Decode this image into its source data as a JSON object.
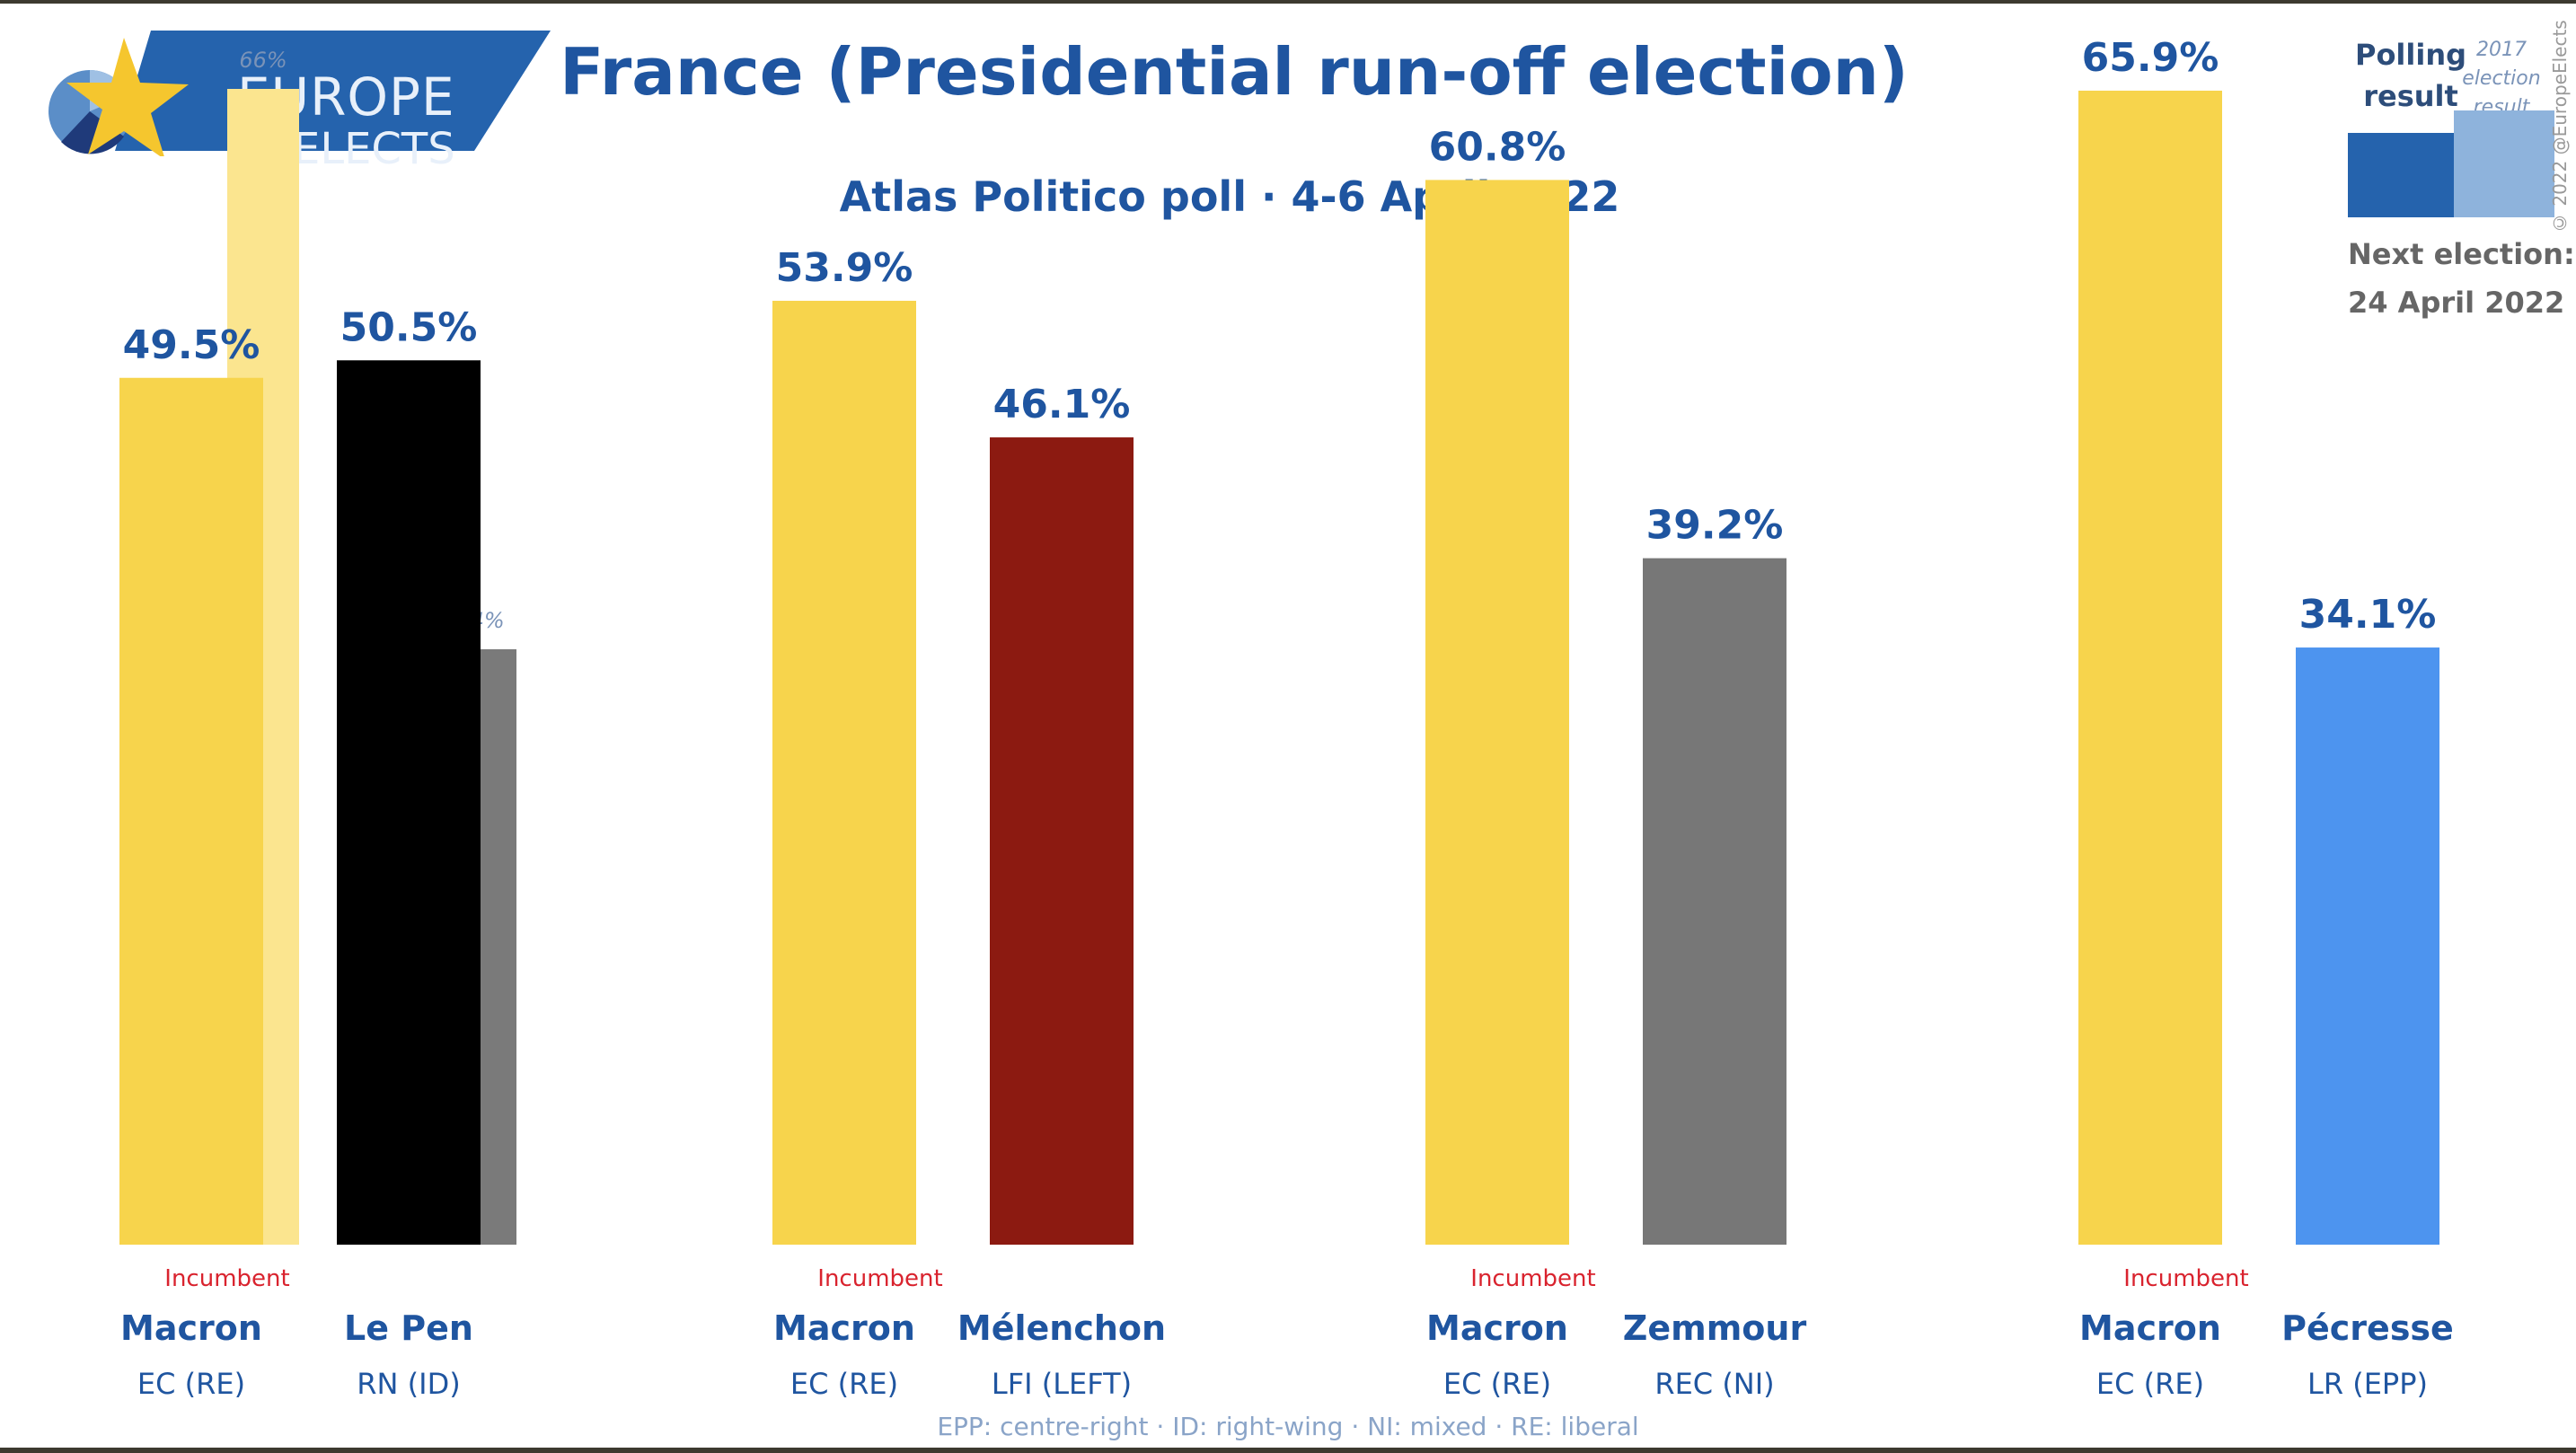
{
  "branding": {
    "line1": "EUROPE",
    "line2": "ELECTS",
    "copyright": "© 2022 @EuropeElects"
  },
  "header": {
    "title": "France (Presidential run-off election)",
    "subtitle": "Atlas Politico poll · 4-6 April 2022"
  },
  "legend": {
    "polling_label": "Polling result",
    "prev_label": "2017 election result",
    "polling_color": "#2563ad",
    "prev_color": "#8eb3dc",
    "next_election_label": "Next election:",
    "next_election_date": "24 April 2022"
  },
  "footnote": "EPP: centre-right · ID: right-wing · NI: mixed · RE: liberal",
  "chart_data": {
    "type": "bar",
    "title": "France (Presidential run-off election)",
    "subtitle": "Atlas Politico poll · 4-6 April 2022",
    "ylim": [
      0,
      70
    ],
    "unit": "%",
    "incumbent_label": "Incumbent",
    "matchups": [
      {
        "candidates": [
          {
            "name": "Macron",
            "party": "EC (RE)",
            "value": 49.5,
            "label": "49.5%",
            "prev": 66,
            "prev_label": "66%",
            "color": "#f7d44c",
            "prev_color": "#fbe58f",
            "incumbent": true
          },
          {
            "name": "Le Pen",
            "party": "RN (ID)",
            "value": 50.5,
            "label": "50.5%",
            "prev": 34,
            "prev_label": "34%",
            "color": "#000000",
            "prev_color": "#7a7a7a",
            "incumbent": false
          }
        ]
      },
      {
        "candidates": [
          {
            "name": "Macron",
            "party": "EC (RE)",
            "value": 53.9,
            "label": "53.9%",
            "color": "#f7d44c",
            "incumbent": true
          },
          {
            "name": "Mélenchon",
            "party": "LFI (LEFT)",
            "value": 46.1,
            "label": "46.1%",
            "color": "#8c1a11",
            "incumbent": false
          }
        ]
      },
      {
        "candidates": [
          {
            "name": "Macron",
            "party": "EC (RE)",
            "value": 60.8,
            "label": "60.8%",
            "color": "#f7d44c",
            "incumbent": true
          },
          {
            "name": "Zemmour",
            "party": "REC (NI)",
            "value": 39.2,
            "label": "39.2%",
            "color": "#777777",
            "incumbent": false
          }
        ]
      },
      {
        "candidates": [
          {
            "name": "Macron",
            "party": "EC (RE)",
            "value": 65.9,
            "label": "65.9%",
            "color": "#f7d44c",
            "incumbent": true
          },
          {
            "name": "Pécresse",
            "party": "LR (EPP)",
            "value": 34.1,
            "label": "34.1%",
            "color": "#4d94ef",
            "incumbent": false
          }
        ]
      }
    ]
  }
}
